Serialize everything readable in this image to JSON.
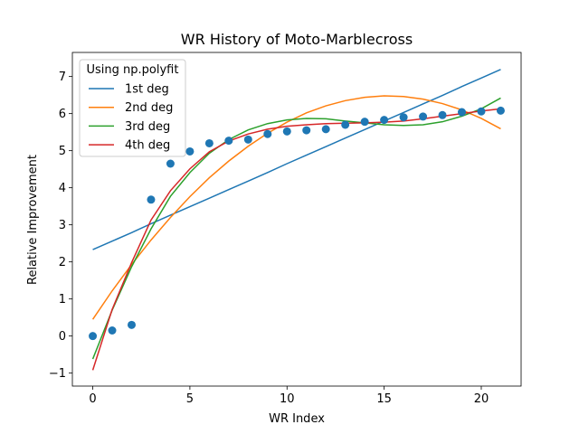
{
  "chart_data": {
    "type": "scatter",
    "title": "WR History of Moto-Marblecross",
    "xlabel": "WR Index",
    "ylabel": "Relative Improvement",
    "xlim": [
      -1.05,
      22.05
    ],
    "ylim": [
      -1.35,
      7.65
    ],
    "xticks": [
      0,
      5,
      10,
      15,
      20
    ],
    "yticks": [
      -1,
      0,
      1,
      2,
      3,
      4,
      5,
      6,
      7
    ],
    "grid": false,
    "legend": {
      "title": "Using np.polyfit",
      "placement": "top-left"
    },
    "x": [
      0,
      1,
      2,
      3,
      4,
      5,
      6,
      7,
      8,
      9,
      10,
      11,
      12,
      13,
      14,
      15,
      16,
      17,
      18,
      19,
      20,
      21
    ],
    "points": {
      "color": "#1f77b4",
      "values": [
        0.0,
        0.15,
        0.3,
        3.68,
        4.65,
        4.98,
        5.2,
        5.27,
        5.3,
        5.45,
        5.52,
        5.55,
        5.58,
        5.7,
        5.78,
        5.83,
        5.9,
        5.92,
        5.96,
        6.04,
        6.06,
        6.08
      ]
    },
    "series": [
      {
        "name": "1st deg",
        "color": "#1f77b4",
        "values": [
          2.33,
          2.56,
          2.79,
          3.03,
          3.26,
          3.49,
          3.72,
          3.95,
          4.18,
          4.41,
          4.65,
          4.88,
          5.11,
          5.34,
          5.57,
          5.8,
          6.03,
          6.26,
          6.49,
          6.73,
          6.96,
          7.19
        ]
      },
      {
        "name": "2nd deg",
        "color": "#ff7f0e",
        "values": [
          0.45,
          1.22,
          1.93,
          2.59,
          3.2,
          3.76,
          4.27,
          4.72,
          5.12,
          5.47,
          5.77,
          6.02,
          6.21,
          6.35,
          6.44,
          6.48,
          6.46,
          6.39,
          6.27,
          6.1,
          5.87,
          5.59
        ]
      },
      {
        "name": "3rd deg",
        "color": "#2ca02c",
        "values": [
          -0.62,
          0.7,
          1.87,
          2.89,
          3.77,
          4.41,
          4.93,
          5.3,
          5.56,
          5.73,
          5.83,
          5.87,
          5.86,
          5.8,
          5.75,
          5.7,
          5.68,
          5.7,
          5.78,
          5.93,
          6.13,
          6.42
        ]
      },
      {
        "name": "4th deg",
        "color": "#d62728",
        "values": [
          -0.92,
          0.72,
          1.98,
          3.13,
          3.92,
          4.51,
          4.97,
          5.26,
          5.45,
          5.58,
          5.66,
          5.7,
          5.73,
          5.74,
          5.75,
          5.77,
          5.8,
          5.86,
          5.93,
          6.0,
          6.07,
          6.13
        ]
      }
    ]
  }
}
